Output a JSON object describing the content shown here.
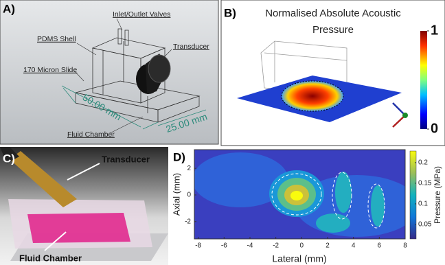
{
  "panel_a": {
    "label": "A)",
    "annotations": [
      "Inlet/Outlet Valves",
      "PDMS Shell",
      "Transducer",
      "170 Micron Slide",
      "Fluid Chamber"
    ],
    "dimensions": [
      "50.00 mm",
      "25.00 mm"
    ]
  },
  "panel_b": {
    "label": "B)",
    "title_lines": [
      "Normalised Absolute Acoustic",
      "Pressure"
    ],
    "colorbar_lim": [
      0,
      1
    ],
    "colorbar_ticks": [
      0,
      1
    ]
  },
  "panel_c": {
    "label": "C)",
    "annotations": [
      "Transducer",
      "Fluid Chamber"
    ]
  },
  "panel_d": {
    "label": "D)",
    "type": "contour",
    "xlabel": "Lateral (mm)",
    "ylabel": "Axial (mm)",
    "xlim": [
      -8.3,
      8
    ],
    "ylim": [
      -3.3,
      3.4
    ],
    "xticks": [
      -8,
      -6,
      -4,
      -2,
      0,
      2,
      4,
      6,
      8
    ],
    "yticks": [
      -2,
      0,
      2
    ],
    "colorbar_label": "Pressure (MPa)",
    "colorbar_lim": [
      0.015,
      0.228
    ],
    "colorbar_ticks": [
      0.05,
      0.1,
      0.15,
      0.2
    ]
  }
}
